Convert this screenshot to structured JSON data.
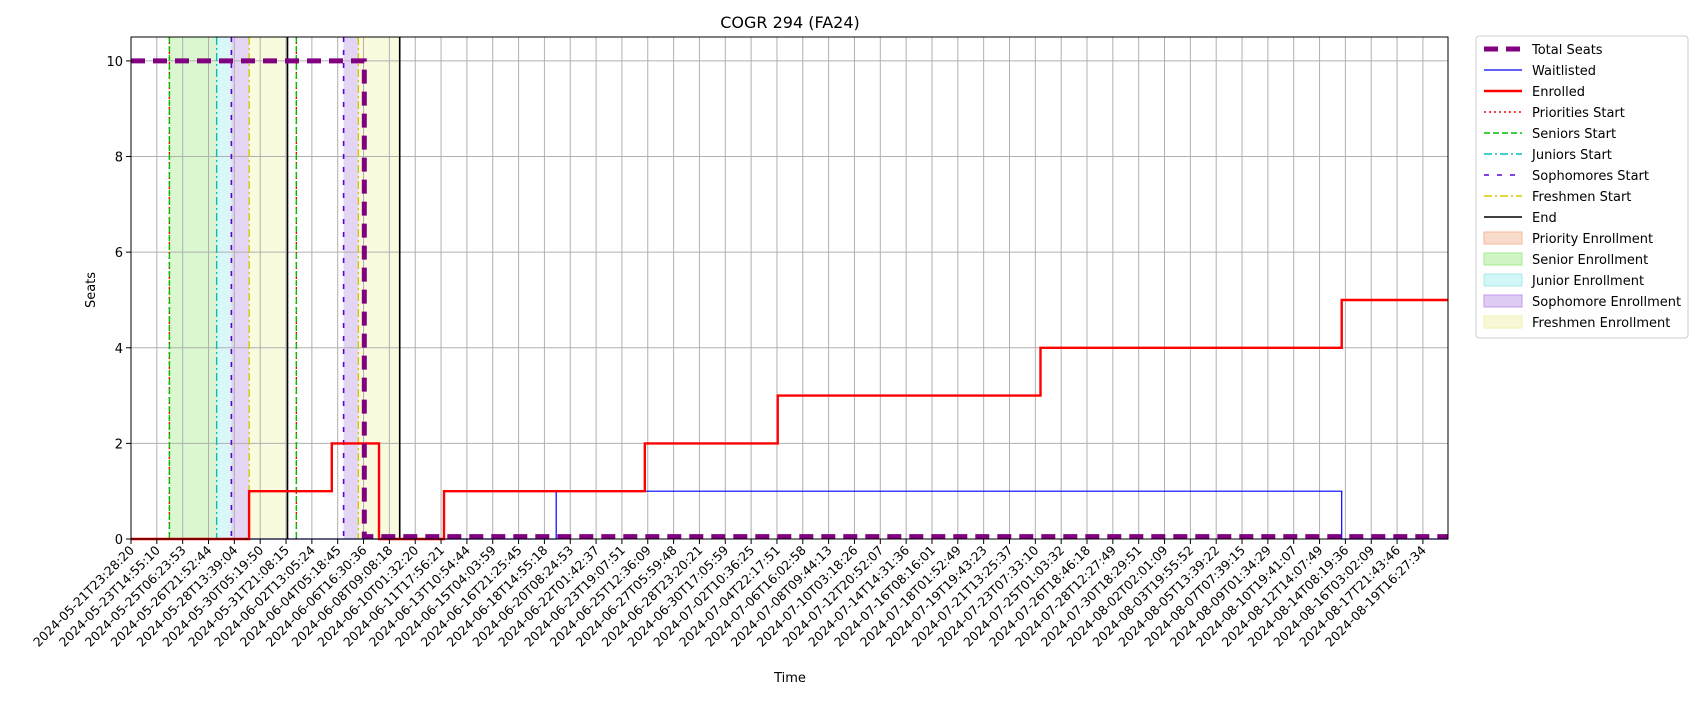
{
  "chart_data": {
    "type": "line",
    "title": "COGR 294 (FA24)",
    "xlabel": "Time",
    "ylabel": "Seats",
    "ylim": [
      0,
      10.5
    ],
    "yticks": [
      0,
      2,
      4,
      6,
      8,
      10
    ],
    "xlim_index": [
      0,
      44.6
    ],
    "grid": true,
    "legend_placement": "outside right, top",
    "x_ticks": [
      "2024-05-21T23:28:20",
      "2024-05-23T14:55:10",
      "2024-05-25T06:23:53",
      "2024-05-26T21:52:44",
      "2024-05-28T13:39:04",
      "2024-05-30T05:19:50",
      "2024-05-31T21:08:15",
      "2024-06-02T13:05:24",
      "2024-06-04T05:18:45",
      "2024-06-06T16:30:36",
      "2024-06-08T09:08:18",
      "2024-06-10T01:32:20",
      "2024-06-11T17:56:21",
      "2024-06-13T10:54:44",
      "2024-06-15T04:03:59",
      "2024-06-16T21:25:45",
      "2024-06-18T14:55:18",
      "2024-06-20T08:24:53",
      "2024-06-22T01:42:37",
      "2024-06-23T19:07:51",
      "2024-06-25T12:36:09",
      "2024-06-27T05:59:48",
      "2024-06-28T23:20:21",
      "2024-06-30T17:05:59",
      "2024-07-02T10:36:25",
      "2024-07-04T22:17:51",
      "2024-07-06T16:02:58",
      "2024-07-08T09:44:13",
      "2024-07-10T03:18:26",
      "2024-07-12T20:52:07",
      "2024-07-14T14:31:36",
      "2024-07-16T08:16:01",
      "2024-07-18T01:52:49",
      "2024-07-19T19:43:23",
      "2024-07-21T13:25:37",
      "2024-07-23T07:33:10",
      "2024-07-25T01:03:32",
      "2024-07-26T18:46:18",
      "2024-07-28T12:27:49",
      "2024-07-30T18:29:51",
      "2024-08-02T02:01:09",
      "2024-08-03T19:55:52",
      "2024-08-05T13:39:22",
      "2024-08-07T07:39:15",
      "2024-08-09T01:34:29",
      "2024-08-10T19:41:07",
      "2024-08-12T14:07:49",
      "2024-08-14T08:19:36",
      "2024-08-16T03:02:09",
      "2024-08-17T21:43:46",
      "2024-08-19T16:27:34"
    ],
    "series": [
      {
        "name": "Total Seats",
        "color": "#800080",
        "style": "dashed-thick",
        "points": [
          [
            0,
            10
          ],
          [
            7.9,
            10
          ],
          [
            7.9,
            0.05
          ],
          [
            44.6,
            0.05
          ]
        ]
      },
      {
        "name": "Waitlisted",
        "color": "#0000ff",
        "style": "solid-thin",
        "points": [
          [
            0,
            0
          ],
          [
            14.4,
            0
          ],
          [
            14.4,
            1
          ],
          [
            41,
            1
          ],
          [
            41,
            0
          ],
          [
            44.6,
            0
          ]
        ]
      },
      {
        "name": "Enrolled",
        "color": "#ff0000",
        "style": "solid-thick",
        "points": [
          [
            0,
            0
          ],
          [
            4,
            0
          ],
          [
            4,
            1
          ],
          [
            6.8,
            1
          ],
          [
            6.8,
            2
          ],
          [
            8.4,
            2
          ],
          [
            8.4,
            0
          ],
          [
            10.6,
            0
          ],
          [
            10.6,
            1
          ],
          [
            17.4,
            1
          ],
          [
            17.4,
            2
          ],
          [
            21.9,
            2
          ],
          [
            21.9,
            3
          ],
          [
            30.8,
            3
          ],
          [
            30.8,
            4
          ],
          [
            41,
            4
          ],
          [
            41,
            5
          ],
          [
            44.6,
            5
          ]
        ]
      }
    ],
    "vertical_lines": [
      {
        "name": "Priorities Start",
        "color": "#ff0000",
        "style": "dotted",
        "x": [
          1.3,
          5.6
        ]
      },
      {
        "name": "Seniors Start",
        "color": "#00c000",
        "style": "dashed",
        "x": [
          1.3,
          5.6
        ]
      },
      {
        "name": "Juniors Start",
        "color": "#00bfbf",
        "style": "dashdot",
        "x": [
          2.9
        ]
      },
      {
        "name": "Sophomores Start",
        "color": "#5b00d6",
        "style": "loosedash",
        "x": [
          3.4,
          7.2
        ]
      },
      {
        "name": "Freshmen Start",
        "color": "#d6c800",
        "style": "dashdot",
        "x": [
          4.0,
          7.7
        ]
      },
      {
        "name": "End",
        "color": "#000000",
        "style": "solid",
        "x": [
          5.3,
          9.1
        ]
      }
    ],
    "spans": [
      {
        "name": "Priority Enrollment",
        "color": "#f4b89a",
        "ranges": []
      },
      {
        "name": "Senior Enrollment",
        "color": "#a6eb8d",
        "ranges": [
          [
            1.3,
            2.9
          ]
        ]
      },
      {
        "name": "Junior Enrollment",
        "color": "#a5ecec",
        "ranges": [
          [
            2.9,
            3.4
          ]
        ]
      },
      {
        "name": "Sophomore Enrollment",
        "color": "#c09ae8",
        "ranges": [
          [
            3.4,
            4.0
          ],
          [
            7.2,
            7.7
          ]
        ]
      },
      {
        "name": "Freshmen Enrollment",
        "color": "#f2f2b0",
        "ranges": [
          [
            4.0,
            5.3
          ],
          [
            7.7,
            9.1
          ]
        ]
      }
    ],
    "legend": [
      {
        "label": "Total Seats",
        "kind": "line",
        "color": "#800080",
        "style": "dashed-thick"
      },
      {
        "label": "Waitlisted",
        "kind": "line",
        "color": "#0000ff",
        "style": "solid-thin"
      },
      {
        "label": "Enrolled",
        "kind": "line",
        "color": "#ff0000",
        "style": "solid-thick"
      },
      {
        "label": "Priorities Start",
        "kind": "line",
        "color": "#ff0000",
        "style": "dotted"
      },
      {
        "label": "Seniors Start",
        "kind": "line",
        "color": "#00c000",
        "style": "dashed"
      },
      {
        "label": "Juniors Start",
        "kind": "line",
        "color": "#00bfbf",
        "style": "dashdot"
      },
      {
        "label": "Sophomores Start",
        "kind": "line",
        "color": "#5b00d6",
        "style": "loosedash"
      },
      {
        "label": "Freshmen Start",
        "kind": "line",
        "color": "#d6c800",
        "style": "dashdot"
      },
      {
        "label": "End",
        "kind": "line",
        "color": "#000000",
        "style": "solid"
      },
      {
        "label": "Priority Enrollment",
        "kind": "patch",
        "color": "#f4b89a"
      },
      {
        "label": "Senior Enrollment",
        "kind": "patch",
        "color": "#a6eb8d"
      },
      {
        "label": "Junior Enrollment",
        "kind": "patch",
        "color": "#a5ecec"
      },
      {
        "label": "Sophomore Enrollment",
        "kind": "patch",
        "color": "#c09ae8"
      },
      {
        "label": "Freshmen Enrollment",
        "kind": "patch",
        "color": "#f2f2b0"
      }
    ]
  }
}
